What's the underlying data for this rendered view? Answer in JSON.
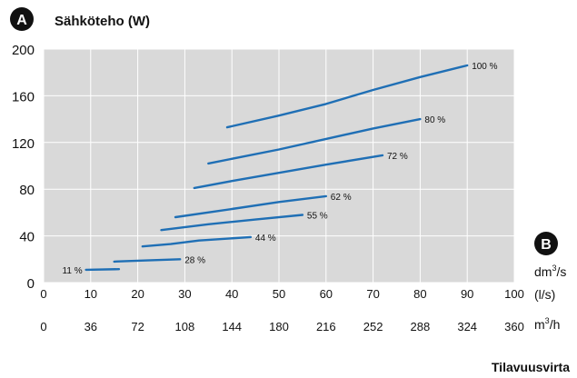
{
  "chart_data": {
    "type": "line",
    "title": "Sähköteho (W)",
    "badge_a": "A",
    "badge_b": "B",
    "xlabel": "Tilavuusvirta",
    "x_unit_1": "dm³/s",
    "x_unit_1_base": "dm",
    "x_unit_1_sup": "3",
    "x_unit_1_tail": "/s",
    "x_unit_2": "(l/s)",
    "x_unit_3": "m³/h",
    "x_unit_3_base": "m",
    "x_unit_3_sup": "3",
    "x_unit_3_tail": "/h",
    "xlim": [
      0,
      100
    ],
    "ylim": [
      0,
      200
    ],
    "xticks": [
      "0",
      "10",
      "20",
      "30",
      "40",
      "50",
      "60",
      "70",
      "80",
      "90",
      "100"
    ],
    "xticks_m3h": [
      "0",
      "36",
      "72",
      "108",
      "144",
      "180",
      "216",
      "252",
      "288",
      "324",
      "360"
    ],
    "yticks": [
      "0",
      "40",
      "80",
      "120",
      "160",
      "200"
    ],
    "grid": true,
    "plot_background": "#d9d9d9",
    "line_color": "#1f6fb5",
    "series": [
      {
        "name": "11 %",
        "x": [
          9,
          16
        ],
        "y": [
          11,
          11.5
        ]
      },
      {
        "name": "28 %",
        "x": [
          15,
          22,
          29
        ],
        "y": [
          18,
          19,
          20
        ]
      },
      {
        "name": "44 %",
        "x": [
          21,
          27,
          33,
          44
        ],
        "y": [
          31,
          33,
          36,
          39
        ]
      },
      {
        "name": "55 %",
        "x": [
          25,
          35,
          45,
          55
        ],
        "y": [
          45,
          50,
          54,
          58
        ]
      },
      {
        "name": "62 %",
        "x": [
          28,
          40,
          50,
          60
        ],
        "y": [
          56,
          63,
          69,
          74
        ]
      },
      {
        "name": "72 %",
        "x": [
          32,
          40,
          50,
          60,
          72
        ],
        "y": [
          81,
          87,
          94,
          101,
          109
        ]
      },
      {
        "name": "80 %",
        "x": [
          35,
          50,
          60,
          70,
          80
        ],
        "y": [
          102,
          114,
          123,
          132,
          140
        ]
      },
      {
        "name": "100 %",
        "x": [
          39,
          50,
          60,
          70,
          80,
          90
        ],
        "y": [
          133,
          143,
          153,
          165,
          176,
          186
        ]
      }
    ]
  }
}
